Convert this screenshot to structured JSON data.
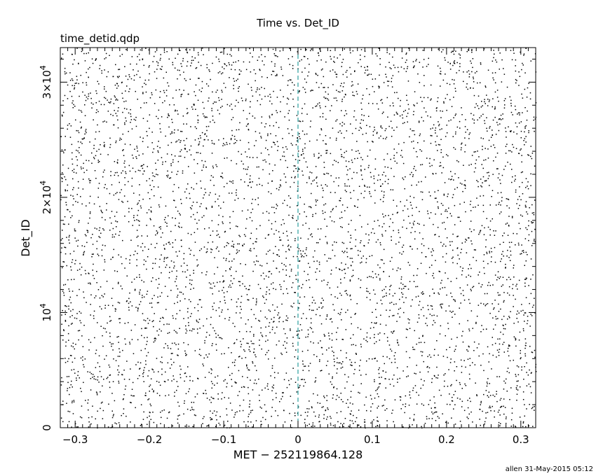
{
  "header": {
    "title": "Time vs. Det_ID",
    "filename": "time_detid.qdp"
  },
  "footer": {
    "stamp": "allen 31-May-2015 05:12"
  },
  "colors": {
    "points": "#000000",
    "marker_line": "#008b8b",
    "frame": "#000000"
  },
  "chart_data": {
    "type": "scatter",
    "title": "Time vs. Det_ID",
    "xlabel": "MET − 252119864.128",
    "ylabel": "Det_ID",
    "xlim": [
      -0.32,
      0.32
    ],
    "ylim": [
      0,
      33000
    ],
    "x_ticks": [
      {
        "value": -0.3,
        "label": "−0.3"
      },
      {
        "value": -0.2,
        "label": "−0.2"
      },
      {
        "value": -0.1,
        "label": "−0.1"
      },
      {
        "value": 0,
        "label": "0"
      },
      {
        "value": 0.1,
        "label": "0.1"
      },
      {
        "value": 0.2,
        "label": "0.2"
      },
      {
        "value": 0.3,
        "label": "0.3"
      }
    ],
    "y_ticks": [
      {
        "value": 0,
        "label": "0",
        "mantissa": "",
        "exponent": ""
      },
      {
        "value": 10000,
        "label": "",
        "mantissa": "10",
        "exponent": "4"
      },
      {
        "value": 20000,
        "label": "",
        "mantissa": "2×10",
        "exponent": "4"
      },
      {
        "value": 30000,
        "label": "",
        "mantissa": "3×10",
        "exponent": "4"
      }
    ],
    "marker_line": {
      "x": 0,
      "style": "dashed"
    },
    "points_note": "",
    "grid": false,
    "legend": "none"
  }
}
